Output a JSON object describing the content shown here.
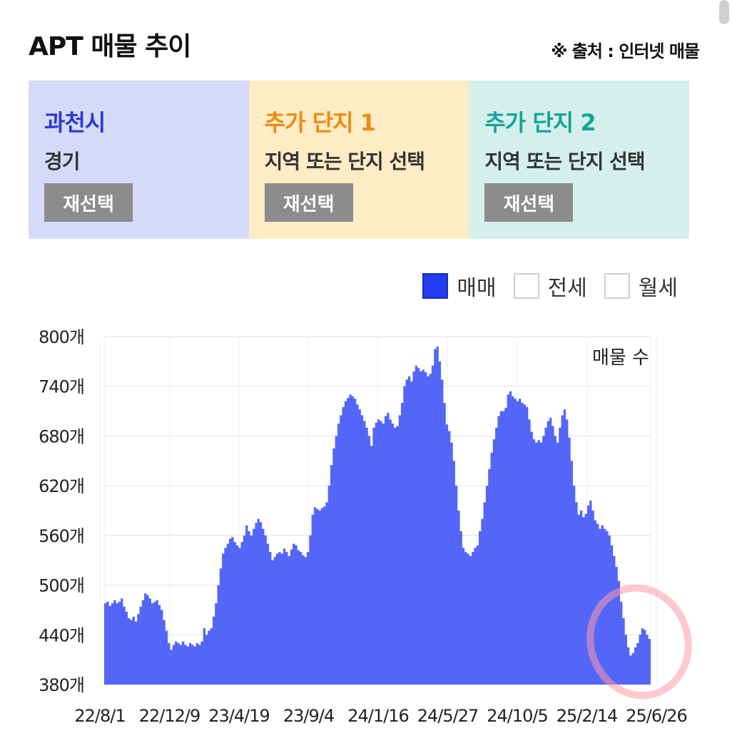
{
  "header": {
    "title": "APT 매물 추이",
    "source": "※ 출처 : 인터넷 매물"
  },
  "panels": [
    {
      "title": "과천시",
      "subtitle": "경기",
      "button": "재선택",
      "title_color": "#2a3bd6",
      "bg": "#d6daf9"
    },
    {
      "title": "추가 단지 1",
      "subtitle": "지역 또는 단지 선택",
      "button": "재선택",
      "title_color": "#f08a12",
      "bg": "#fdecc4"
    },
    {
      "title": "추가 단지 2",
      "subtitle": "지역 또는 단지 선택",
      "button": "재선택",
      "title_color": "#16a39a",
      "bg": "#d5f0ec"
    }
  ],
  "legend": [
    {
      "label": "매매",
      "checked": true
    },
    {
      "label": "전세",
      "checked": false
    },
    {
      "label": "월세",
      "checked": false
    }
  ],
  "chart_data": {
    "type": "area",
    "ylabel": "매물 수",
    "ylim": [
      380,
      800
    ],
    "yticks": [
      "800개",
      "740개",
      "680개",
      "620개",
      "560개",
      "500개",
      "440개",
      "380개"
    ],
    "y_tick_values": [
      800,
      740,
      680,
      620,
      560,
      500,
      440,
      380
    ],
    "xticks": [
      "22/8/1",
      "22/12/9",
      "23/4/19",
      "23/9/4",
      "24/1/16",
      "24/5/27",
      "24/10/5",
      "25/2/14",
      "25/6/26"
    ],
    "fill_color": "#5466f7",
    "grid": true,
    "series": [
      {
        "values": [
          478,
          480,
          475,
          478,
          482,
          478,
          480,
          484,
          474,
          468,
          460,
          458,
          462,
          456,
          465,
          474,
          482,
          490,
          488,
          484,
          478,
          480,
          482,
          476,
          470,
          458,
          445,
          430,
          422,
          428,
          432,
          430,
          428,
          432,
          428,
          426,
          430,
          428,
          426,
          430,
          428,
          432,
          448,
          440,
          445,
          448,
          462,
          478,
          500,
          520,
          538,
          545,
          550,
          556,
          558,
          552,
          548,
          545,
          552,
          560,
          572,
          565,
          560,
          568,
          575,
          580,
          576,
          568,
          560,
          550,
          540,
          530,
          534,
          538,
          540,
          538,
          544,
          540,
          535,
          543,
          550,
          548,
          542,
          540,
          536,
          534,
          540,
          560,
          585,
          594,
          592,
          590,
          593,
          595,
          600,
          620,
          645,
          665,
          680,
          695,
          705,
          715,
          722,
          726,
          730,
          728,
          725,
          718,
          712,
          705,
          698,
          690,
          680,
          668,
          690,
          696,
          700,
          698,
          695,
          704,
          708,
          700,
          695,
          690,
          692,
          705,
          720,
          740,
          748,
          752,
          746,
          758,
          765,
          762,
          758,
          760,
          757,
          752,
          755,
          765,
          785,
          788,
          770,
          748,
          720,
          694,
          686,
          672,
          650,
          620,
          590,
          565,
          545,
          540,
          538,
          535,
          540,
          545,
          548,
          565,
          580,
          600,
          620,
          640,
          660,
          676,
          690,
          704,
          710,
          710,
          714,
          730,
          734,
          728,
          725,
          722,
          725,
          720,
          718,
          715,
          700,
          685,
          676,
          672,
          675,
          672,
          680,
          690,
          698,
          702,
          692,
          680,
          672,
          690,
          705,
          712,
          700,
          678,
          650,
          620,
          600,
          585,
          590,
          582,
          586,
          596,
          602,
          590,
          578,
          574,
          568,
          572,
          568,
          565,
          560,
          548,
          535,
          522,
          505,
          480,
          460,
          440,
          425,
          415,
          418,
          425,
          430,
          440,
          448,
          446,
          440,
          435
        ]
      }
    ]
  }
}
